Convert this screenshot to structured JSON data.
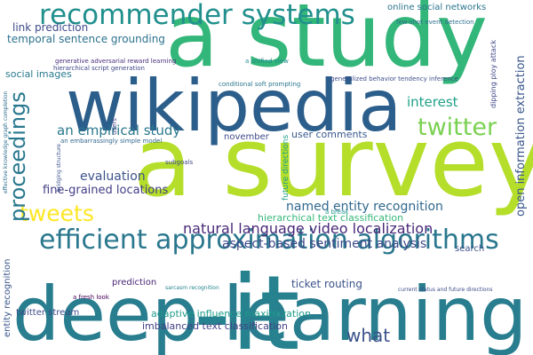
{
  "title": "",
  "words": [
    {
      "id": "astudy",
      "text": "a study",
      "color": "#33b679"
    },
    {
      "id": "asurvey",
      "text": "a survey",
      "color": "#b5de2b"
    },
    {
      "id": "wikipedia",
      "text": "wikipedia",
      "color": "#2c5e8b"
    },
    {
      "id": "deeplearn",
      "text": "deep learning",
      "color": "#287d8e"
    },
    {
      "id": "it",
      "text": "-it",
      "color": "#26828e"
    },
    {
      "id": "recsys",
      "text": "recommender systems",
      "color": "#21908d"
    },
    {
      "id": "effic",
      "text": "efficient approximation algorithms",
      "color": "#2a778e"
    },
    {
      "id": "twitter",
      "text": "twitter",
      "color": "#7ad151"
    },
    {
      "id": "tweets",
      "text": "tweets",
      "color": "#fde725"
    },
    {
      "id": "proceed",
      "text": "proceedings",
      "color": "#29788e"
    },
    {
      "id": "what",
      "text": "what",
      "color": "#3b528b"
    },
    {
      "id": "natlang",
      "text": "natural language video localization",
      "color": "#482878"
    },
    {
      "id": "emp",
      "text": "an empirical study",
      "color": "#2a788e"
    },
    {
      "id": "interest",
      "text": "interest",
      "color": "#1fa188"
    },
    {
      "id": "ner",
      "text": "named entity recognition",
      "color": "#31688e"
    },
    {
      "id": "aspect",
      "text": "aspect-based sentiment analysis",
      "color": "#3e4989"
    },
    {
      "id": "eval",
      "text": "evaluation",
      "color": "#3b528b"
    },
    {
      "id": "fgloc",
      "text": "fine-grained locations",
      "color": "#433e85"
    },
    {
      "id": "ticket",
      "text": "ticket routing",
      "color": "#3b528b"
    },
    {
      "id": "temporal",
      "text": "temporal sentence grounding",
      "color": "#2c728e"
    },
    {
      "id": "linkpred",
      "text": "link prediction",
      "color": "#3e4a89"
    },
    {
      "id": "adapt",
      "text": "adaptive influence maximization",
      "color": "#1e9b8a"
    },
    {
      "id": "imbal",
      "text": "imbalanced text classification",
      "color": "#424086"
    },
    {
      "id": "htc",
      "text": "hierarchical text classification",
      "color": "#35b779"
    },
    {
      "id": "socimg",
      "text": "social images",
      "color": "#29798e"
    },
    {
      "id": "usercom",
      "text": "user comments",
      "color": "#38598c"
    },
    {
      "id": "twstream",
      "text": "twitter stream",
      "color": "#3e4c8a"
    },
    {
      "id": "onsoc",
      "text": "online social networks",
      "color": "#2a768e"
    },
    {
      "id": "prediction",
      "text": "prediction",
      "color": "#482576"
    },
    {
      "id": "search",
      "text": "search",
      "color": "#3b528b"
    },
    {
      "id": "nov",
      "text": "november",
      "color": "#3e4a89"
    },
    {
      "id": "fewshot",
      "text": "few-shot event detection",
      "color": "#2d6f8e"
    },
    {
      "id": "genrew",
      "text": "generative adversarial reward learning",
      "color": "#472d7b"
    },
    {
      "id": "genbeh",
      "text": "generalized behavior tendency inference",
      "color": "#3d4d8a"
    },
    {
      "id": "condsoft",
      "text": "conditional soft prompting",
      "color": "#2a768e"
    },
    {
      "id": "hierscript",
      "text": "hierarchical script generation",
      "color": "#3f4788"
    },
    {
      "id": "unified",
      "text": "a unified view",
      "color": "#23898e"
    },
    {
      "id": "fresh",
      "text": "a fresh look",
      "color": "#440154"
    },
    {
      "id": "curstat",
      "text": "current status and future directions",
      "color": "#3e4c8a"
    },
    {
      "id": "sarcasm",
      "text": "sarcasm recognition",
      "color": "#25848e"
    },
    {
      "id": "subgoals",
      "text": "subgoals",
      "color": "#3e4989"
    },
    {
      "id": "embarrass",
      "text": "an embarrassingly simple model",
      "color": "#31688e"
    },
    {
      "id": "abreak",
      "text": "a break",
      "color": "#1f948c"
    },
    {
      "id": "usersv",
      "text": "users",
      "color": "#433e85"
    },
    {
      "id": "openinfo",
      "text": "open information extraction",
      "color": "#39568c"
    },
    {
      "id": "entrec",
      "text": "entity recognition",
      "color": "#39568c"
    },
    {
      "id": "future",
      "text": "future directions",
      "color": "#1f9e89"
    },
    {
      "id": "dpf",
      "text": "dipping ploy attack",
      "color": "#3f4788"
    },
    {
      "id": "effkg",
      "text": "effective knowledge graph completion",
      "color": "#2e6e8e"
    },
    {
      "id": "bigstruct",
      "text": "bridging structure",
      "color": "#3b528b"
    }
  ]
}
